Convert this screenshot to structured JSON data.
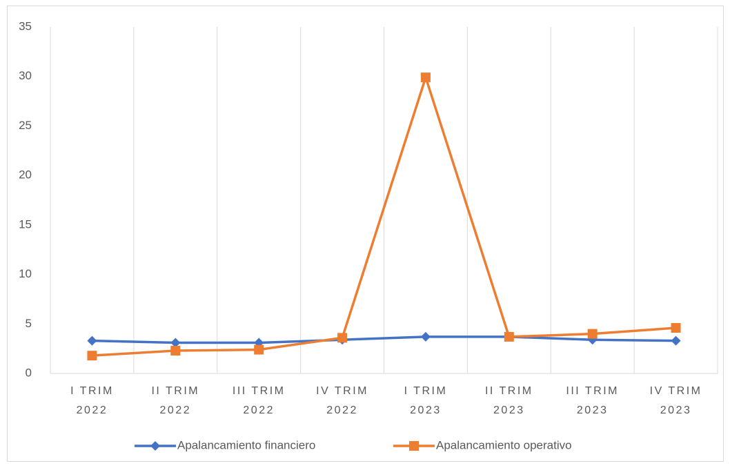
{
  "chart_data": {
    "type": "line",
    "categories": [
      [
        "I TRIM",
        "2022"
      ],
      [
        "II TRIM",
        "2022"
      ],
      [
        "III TRIM",
        "2022"
      ],
      [
        "IV TRIM",
        "2022"
      ],
      [
        "I TRIM",
        "2023"
      ],
      [
        "II TRIM",
        "2023"
      ],
      [
        "III TRIM",
        "2023"
      ],
      [
        "IV TRIM",
        "2023"
      ]
    ],
    "series": [
      {
        "name": "Apalancamiento financiero",
        "color": "#4472c4",
        "marker": "diamond",
        "values": [
          3.3,
          3.1,
          3.1,
          3.4,
          3.7,
          3.7,
          3.4,
          3.3
        ]
      },
      {
        "name": "Apalancamiento operativo",
        "color": "#ed7d31",
        "marker": "square",
        "values": [
          1.8,
          2.3,
          2.4,
          3.6,
          29.9,
          3.7,
          4.0,
          4.6
        ]
      }
    ],
    "ylim": [
      0,
      35
    ],
    "yticks": [
      0,
      5,
      10,
      15,
      20,
      25,
      30,
      35
    ],
    "grid": true,
    "legend": "bottom"
  }
}
